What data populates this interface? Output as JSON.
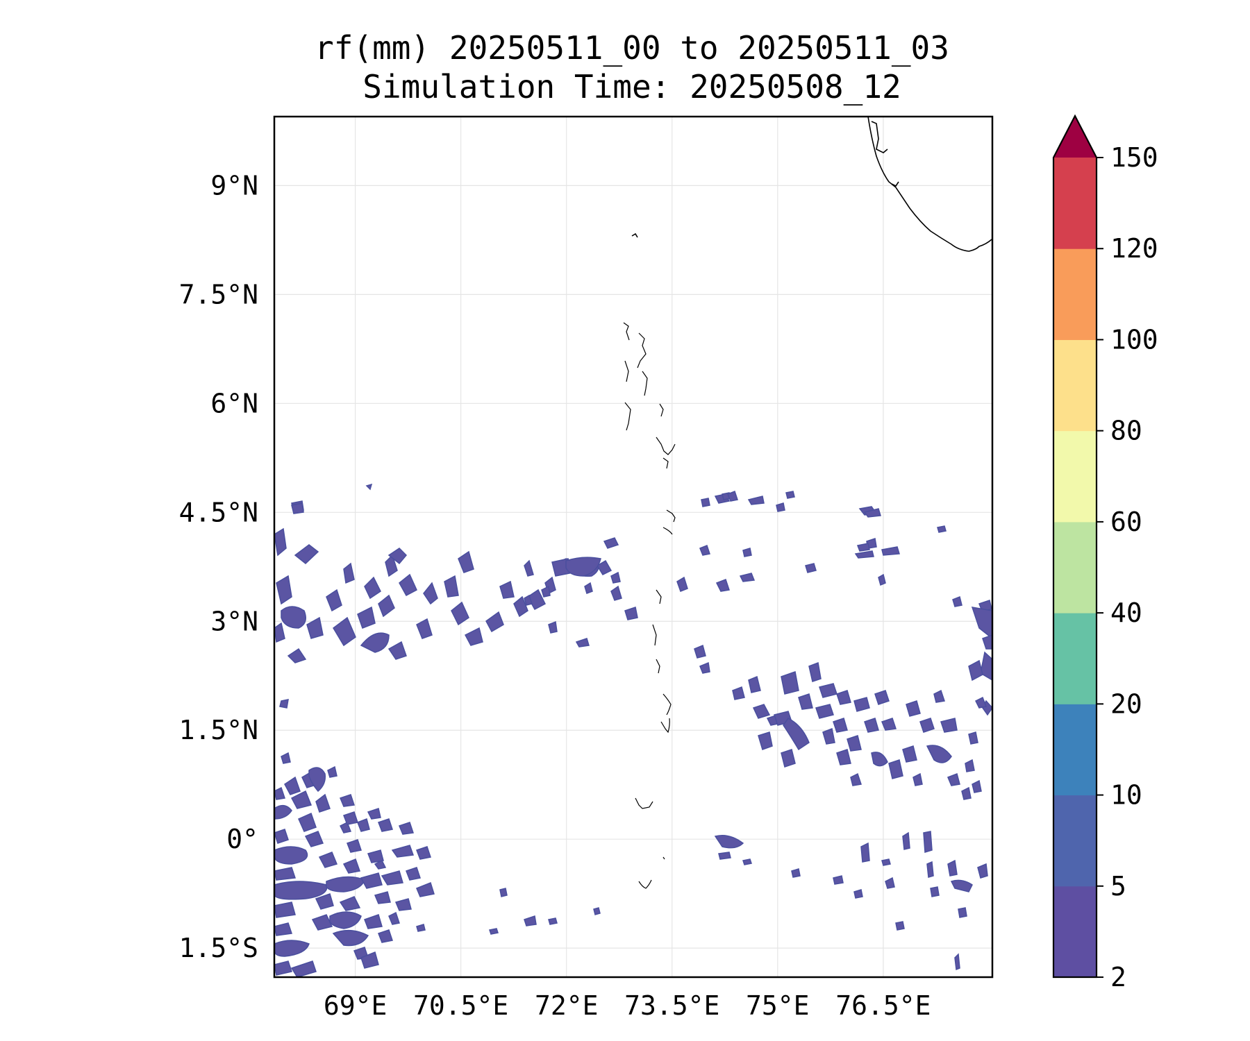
{
  "title": {
    "line1": "rf(mm) 20250511_00 to 20250511_03",
    "line2": "Simulation Time: 20250508_12"
  },
  "map": {
    "extent": {
      "lon_min": 67.85,
      "lon_max": 78.05,
      "lat_min": -1.9,
      "lat_max": 9.95
    },
    "gridlines": true,
    "lon_ticks": [
      {
        "value": 69.0,
        "label": "69°E"
      },
      {
        "value": 70.5,
        "label": "70.5°E"
      },
      {
        "value": 72.0,
        "label": "72°E"
      },
      {
        "value": 73.5,
        "label": "73.5°E"
      },
      {
        "value": 75.0,
        "label": "75°E"
      },
      {
        "value": 76.5,
        "label": "76.5°E"
      }
    ],
    "lat_ticks": [
      {
        "value": 9.0,
        "label": "9°N"
      },
      {
        "value": 7.5,
        "label": "7.5°N"
      },
      {
        "value": 6.0,
        "label": "6°N"
      },
      {
        "value": 4.5,
        "label": "4.5°N"
      },
      {
        "value": 3.0,
        "label": "3°N"
      },
      {
        "value": 1.5,
        "label": "1.5°N"
      },
      {
        "value": 0.0,
        "label": "0°"
      },
      {
        "value": -1.5,
        "label": "1.5°S"
      }
    ],
    "rain_color": "#5b55a3",
    "coast_color": "#000000"
  },
  "colorbar": {
    "levels": [
      "2",
      "5",
      "10",
      "20",
      "40",
      "60",
      "80",
      "100",
      "120",
      "150"
    ],
    "colors": [
      "#5e4fa2",
      "#4f65ad",
      "#3d82bb",
      "#66c2a5",
      "#bde4a1",
      "#f2f9ab",
      "#fde08b",
      "#f99c5a",
      "#d5404e"
    ],
    "extend_color": "#9e0142",
    "extend": "max"
  }
}
